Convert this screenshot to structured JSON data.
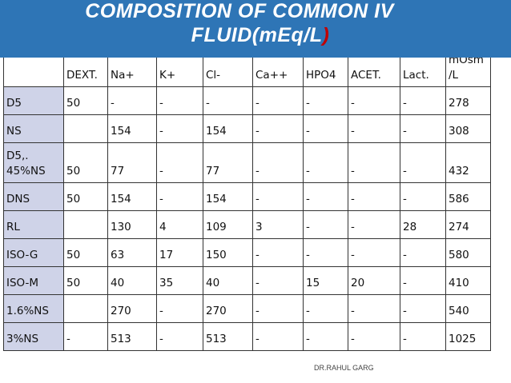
{
  "title": {
    "line1": "COMPOSITION  OF COMMON  IV",
    "line2_main": "FLUID(mEq/L",
    "line2_paren": ")"
  },
  "table": {
    "headers": [
      "",
      "DEXT.",
      "Na+",
      "K+",
      "Cl-",
      "Ca++",
      "HPO4",
      "ACET.",
      "Lact.",
      "mOsm /L"
    ],
    "rows": [
      [
        "D5",
        "50",
        "-",
        "-",
        "-",
        "-",
        "-",
        "-",
        "-",
        "278"
      ],
      [
        "NS",
        "",
        "154",
        "-",
        "154",
        "-",
        "-",
        "-",
        "-",
        "308"
      ],
      [
        "D5,. 45%NS",
        "50",
        "77",
        "-",
        "77",
        "-",
        "-",
        "-",
        "-",
        "432"
      ],
      [
        "DNS",
        "50",
        "154",
        "-",
        "154",
        "-",
        "-",
        "-",
        "-",
        "586"
      ],
      [
        "RL",
        "",
        "130",
        "4",
        "109",
        "3",
        "-",
        "-",
        "28",
        "274"
      ],
      [
        "ISO-G",
        "50",
        "63",
        "17",
        "150",
        "-",
        "-",
        "-",
        "-",
        "580"
      ],
      [
        "ISO-M",
        "50",
        "40",
        "35",
        "40",
        "-",
        "15",
        "20",
        "-",
        "410"
      ],
      [
        "1.6%NS",
        "",
        "270",
        "-",
        "270",
        "-",
        "-",
        "-",
        "-",
        "540"
      ],
      [
        "3%NS",
        "-",
        "513",
        "-",
        "513",
        "-",
        "-",
        "-",
        "-",
        "1025"
      ]
    ]
  },
  "watermark": "DR.RAHUL GARG",
  "colors": {
    "title_bar": "#2e75b6",
    "title_text": "#ffffff",
    "paren_accent": "#c00000",
    "label_cell": "#cfd3e8"
  }
}
